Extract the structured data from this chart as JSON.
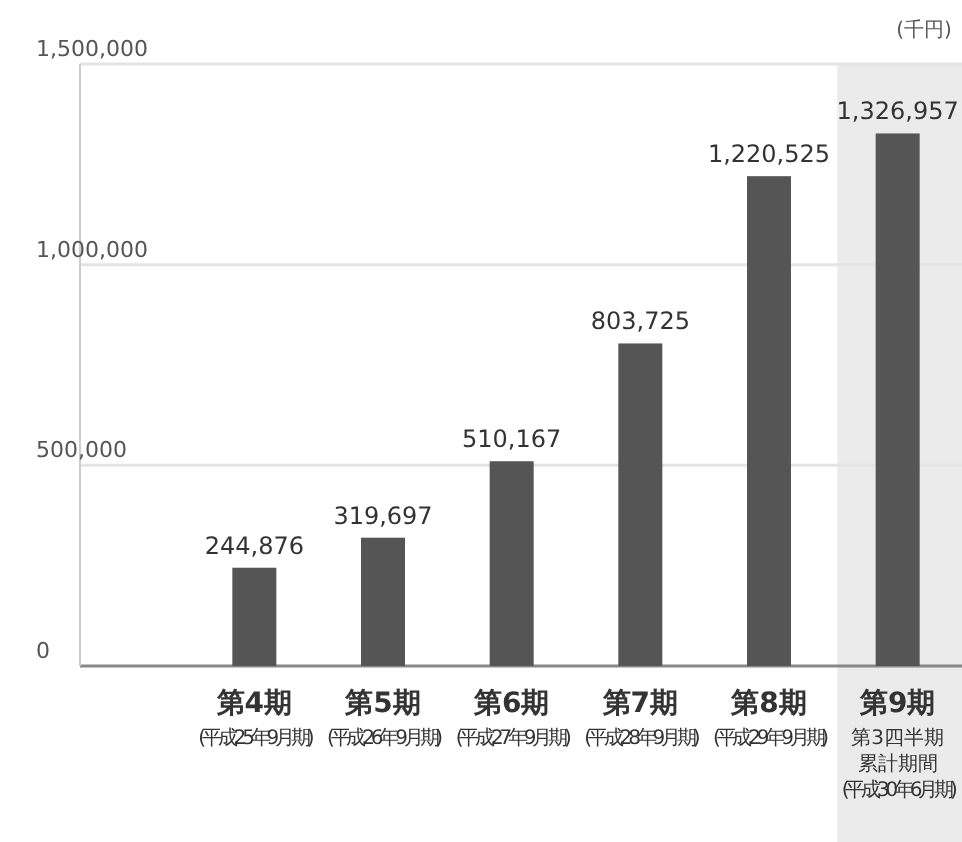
{
  "chart_data": {
    "type": "bar",
    "ylabel": "(千円)",
    "categories": [
      "第4期\n(平成25年9月期)",
      "第5期\n(平成26年9月期)",
      "第6期\n(平成27年9月期)",
      "第7期\n(平成28年9月期)",
      "第8期\n(平成29年9月期)",
      "第9期第3四半期累計期間\n(平成30年6月期)"
    ],
    "values": [
      244876,
      319697,
      510167,
      803725,
      1220525,
      1326957
    ],
    "color": "#555555",
    "value_labels": [
      "244,876",
      "319,697",
      "510,167",
      "803,725",
      "1,220,525",
      "1,326,957"
    ],
    "ylim": [
      0,
      1500000
    ],
    "yticks": [
      {
        "value": 0,
        "label": "0"
      },
      {
        "value": 500000,
        "label": "500,000"
      },
      {
        "value": 1000000,
        "label": "1,000,000"
      },
      {
        "value": 1500000,
        "label": "1,500,000"
      }
    ],
    "grid": "y",
    "bands": [
      {
        "axis": "x",
        "from": "第9期第3四半期累計期間\n(平成30年6月期)",
        "to": "第9期第3四半期累計期間\n(平成30年6月期)",
        "color": "#ebebeb"
      }
    ]
  }
}
